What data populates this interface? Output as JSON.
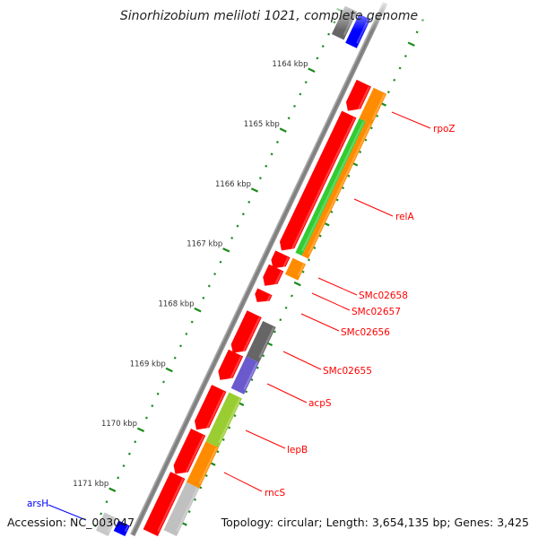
{
  "title": "Sinorhizobium meliloti 1021, complete genome",
  "footer": {
    "accession": "Accession: NC_003047",
    "summary": "Topology: circular; Length: 3,654,135 bp; Genes: 3,425"
  },
  "colors": {
    "backbone": "#888888",
    "tick": "#1a8a1a",
    "label_fwd": "#ff0000",
    "label_rev": "#0000ff"
  },
  "ruler": {
    "unit": "kbp",
    "labels": [
      "1164 kbp",
      "1165 kbp",
      "1166 kbp",
      "1167 kbp",
      "1168 kbp",
      "1169 kbp",
      "1170 kbp",
      "1171 kbp"
    ],
    "major_values": [
      1164,
      1165,
      1166,
      1167,
      1168,
      1169,
      1170,
      1171
    ],
    "minor_step": 0.2,
    "range": [
      1162.6,
      1171.8
    ]
  },
  "features": [
    {
      "track": "rev-outer",
      "color": "#666666",
      "start": 1162.91,
      "end": 1163.38
    },
    {
      "track": "rev-inner",
      "color": "#0000ff",
      "start": 1162.93,
      "end": 1163.41
    },
    {
      "track": "rev-outer",
      "color": "#c8c8c8",
      "start": 1171.36,
      "end": 1171.75
    },
    {
      "track": "rev-inner",
      "color": "#0000ff",
      "start": 1171.38,
      "end": 1171.7
    },
    {
      "track": "cds",
      "color": "#ff0000",
      "start": 1163.84,
      "end": 1164.32,
      "arrow": true
    },
    {
      "track": "cds",
      "color": "#ff0000",
      "start": 1164.36,
      "end": 1166.65,
      "arrow": true
    },
    {
      "track": "cds",
      "color": "#ff0000",
      "start": 1166.69,
      "end": 1166.95,
      "arrow": true
    },
    {
      "track": "cds",
      "color": "#ff0000",
      "start": 1166.92,
      "end": 1167.24,
      "arrow": true
    },
    {
      "track": "cds",
      "color": "#ff0000",
      "start": 1167.32,
      "end": 1167.51,
      "arrow": true
    },
    {
      "track": "cds",
      "color": "#ff0000",
      "start": 1167.69,
      "end": 1168.36,
      "arrow": true
    },
    {
      "track": "cds",
      "color": "#ff0000",
      "start": 1168.34,
      "end": 1168.81,
      "arrow": true
    },
    {
      "track": "cds",
      "color": "#ff0000",
      "start": 1168.93,
      "end": 1169.64,
      "arrow": true
    },
    {
      "track": "cds",
      "color": "#ff0000",
      "start": 1169.66,
      "end": 1170.38,
      "arrow": true
    },
    {
      "track": "cds",
      "color": "#ff0000",
      "start": 1170.38,
      "end": 1171.35,
      "arrow": true
    },
    {
      "track": "gene",
      "color": "#ff8c00",
      "start": 1163.84,
      "end": 1164.35
    },
    {
      "track": "gene-a",
      "color": "#33cc33",
      "start": 1164.35,
      "end": 1166.59
    },
    {
      "track": "gene-b",
      "color": "#ff8c00",
      "start": 1164.35,
      "end": 1166.59
    },
    {
      "track": "gene",
      "color": "#ff8c00",
      "start": 1166.68,
      "end": 1166.95
    },
    {
      "track": "gene",
      "color": "#666666",
      "start": 1167.73,
      "end": 1168.32
    },
    {
      "track": "gene",
      "color": "#6a5acd",
      "start": 1168.32,
      "end": 1168.85
    },
    {
      "track": "gene",
      "color": "#9acd32",
      "start": 1168.92,
      "end": 1169.74
    },
    {
      "track": "gene",
      "color": "#ff8c00",
      "start": 1169.74,
      "end": 1170.42
    },
    {
      "track": "gene",
      "color": "#c0c0c0",
      "start": 1170.42,
      "end": 1171.55
    }
  ],
  "gene_labels": [
    "rpoZ",
    "relA",
    "SMc02658",
    "SMc02657",
    "SMc02656",
    "SMc02655",
    "acpS",
    "lepB",
    "rncS",
    "arsH"
  ]
}
